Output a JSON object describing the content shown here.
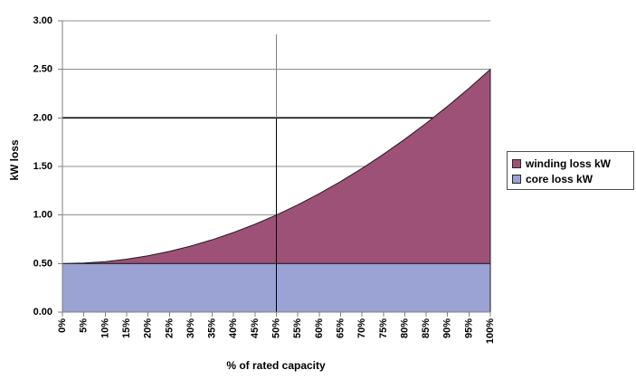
{
  "chart_data": {
    "type": "area",
    "stacked": true,
    "title": "",
    "xlabel": "% of rated capacity",
    "ylabel": "kW loss",
    "categories": [
      "0%",
      "5%",
      "10%",
      "15%",
      "20%",
      "25%",
      "30%",
      "35%",
      "40%",
      "45%",
      "50%",
      "55%",
      "60%",
      "65%",
      "70%",
      "75%",
      "80%",
      "85%",
      "90%",
      "95%",
      "100%"
    ],
    "series": [
      {
        "name": "winding loss kW",
        "color": "#9E5176",
        "values": [
          0,
          0.005,
          0.02,
          0.045,
          0.08,
          0.125,
          0.18,
          0.245,
          0.32,
          0.405,
          0.5,
          0.605,
          0.72,
          0.845,
          0.98,
          1.125,
          1.28,
          1.445,
          1.62,
          1.805,
          2.0
        ]
      },
      {
        "name": "core loss kW",
        "color": "#9AA3D4",
        "values": [
          0.5,
          0.5,
          0.5,
          0.5,
          0.5,
          0.5,
          0.5,
          0.5,
          0.5,
          0.5,
          0.5,
          0.5,
          0.5,
          0.5,
          0.5,
          0.5,
          0.5,
          0.5,
          0.5,
          0.5,
          0.5
        ]
      }
    ],
    "stack_bottom_to_top": [
      "core loss kW",
      "winding loss kW"
    ],
    "ylim": [
      0,
      3
    ],
    "y_ticks": [
      0,
      0.5,
      1.0,
      1.5,
      2.0,
      2.5,
      3.0
    ],
    "y_tick_labels": [
      "0.00",
      "0.50",
      "1.00",
      "1.50",
      "2.00",
      "2.50",
      "3.00"
    ],
    "grid": "horizontal",
    "legend_position": "right",
    "annotations": {
      "hline": {
        "y": 2.0,
        "color": "#000000"
      },
      "vline": {
        "category": "50%",
        "index": 10,
        "top_value": 2.86,
        "color_above_hline": "#808080",
        "color_below_hline": "#000000"
      }
    },
    "style": {
      "gridline_color": "#8f8f8f",
      "axis_color": "#808080",
      "area_outline_color": "#1f1f1f",
      "text_color": "#000000",
      "background": "#ffffff"
    }
  }
}
